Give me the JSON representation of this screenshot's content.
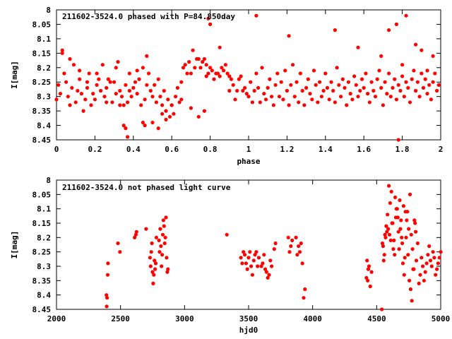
{
  "colors": {
    "points": "#ff0000",
    "axes": "#000000",
    "background": "#ffffff"
  },
  "chart_data": [
    {
      "type": "scatter",
      "title": "211602-3524.0 phased with P=84.850day",
      "xlabel": "phase",
      "ylabel": "I[mag]",
      "xlim": [
        0,
        2
      ],
      "ylim": [
        8.45,
        8.0
      ],
      "y_inverted": true,
      "grid": false,
      "xticks": [
        "0",
        "0.2",
        "0.4",
        "0.6",
        "0.8",
        "1",
        "1.2",
        "1.4",
        "1.6",
        "1.8",
        "2"
      ],
      "yticks": [
        "8",
        "8.05",
        "8.1",
        "8.15",
        "8.2",
        "8.25",
        "8.3",
        "8.35",
        "8.4",
        "8.45"
      ],
      "series": [
        {
          "x": [
            0.0,
            0.01,
            0.02,
            0.03,
            0.04,
            0.05,
            0.06,
            0.07,
            0.08,
            0.09,
            0.1,
            0.11,
            0.12,
            0.13,
            0.14,
            0.15,
            0.16,
            0.17,
            0.18,
            0.19,
            0.2,
            0.21,
            0.22,
            0.23,
            0.24,
            0.25,
            0.26,
            0.27,
            0.28,
            0.29,
            0.3,
            0.31,
            0.32,
            0.33,
            0.34,
            0.35,
            0.36,
            0.37,
            0.38,
            0.39,
            0.4,
            0.41,
            0.42,
            0.43,
            0.44,
            0.45,
            0.46,
            0.47,
            0.48,
            0.49,
            0.5,
            0.51,
            0.52,
            0.53,
            0.54,
            0.55,
            0.56,
            0.57,
            0.58,
            0.59,
            0.6,
            0.61,
            0.62,
            0.63,
            0.64,
            0.65,
            0.66,
            0.67,
            0.68,
            0.69,
            0.7,
            0.71,
            0.72,
            0.73,
            0.74,
            0.75,
            0.76,
            0.77,
            0.78,
            0.79,
            0.8,
            0.81,
            0.82,
            0.83,
            0.84,
            0.85,
            0.86,
            0.87,
            0.88,
            0.89,
            0.9,
            0.91,
            0.92,
            0.93,
            0.94,
            0.95,
            0.96,
            0.97,
            0.98,
            0.99,
            0.03,
            0.07,
            0.12,
            0.16,
            0.21,
            0.26,
            0.31,
            0.35,
            0.36,
            0.37,
            0.45,
            0.46,
            0.5,
            0.53,
            0.57,
            0.74,
            0.77,
            0.78,
            0.79,
            0.8,
            0.33,
            0.38,
            0.42,
            0.47,
            0.55,
            0.6,
            0.65,
            0.7,
            0.85,
            0.9,
            1.0,
            1.01,
            1.02,
            1.03,
            1.04,
            1.05,
            1.06,
            1.07,
            1.08,
            1.09,
            1.1,
            1.11,
            1.12,
            1.13,
            1.14,
            1.15,
            1.16,
            1.17,
            1.18,
            1.19,
            1.2,
            1.21,
            1.22,
            1.23,
            1.24,
            1.25,
            1.26,
            1.27,
            1.28,
            1.29,
            1.3,
            1.31,
            1.32,
            1.33,
            1.34,
            1.35,
            1.36,
            1.37,
            1.38,
            1.39,
            1.4,
            1.41,
            1.42,
            1.43,
            1.44,
            1.45,
            1.46,
            1.47,
            1.48,
            1.49,
            1.5,
            1.51,
            1.52,
            1.53,
            1.54,
            1.55,
            1.56,
            1.57,
            1.58,
            1.59,
            1.6,
            1.61,
            1.62,
            1.63,
            1.64,
            1.65,
            1.66,
            1.67,
            1.68,
            1.69,
            1.7,
            1.71,
            1.72,
            1.73,
            1.74,
            1.75,
            1.76,
            1.77,
            1.78,
            1.79,
            1.8,
            1.81,
            1.82,
            1.83,
            1.84,
            1.85,
            1.86,
            1.87,
            1.88,
            1.89,
            1.9,
            1.91,
            1.92,
            1.93,
            1.94,
            1.95,
            1.96,
            1.97,
            1.98,
            1.99,
            1.04,
            1.21,
            1.45,
            1.57,
            1.69,
            1.73,
            1.77,
            1.78,
            1.8,
            1.82,
            1.87,
            1.9,
            1.93,
            1.96,
            1.99
          ],
          "y": [
            8.31,
            8.26,
            8.29,
            8.15,
            8.22,
            8.25,
            8.3,
            8.33,
            8.27,
            8.19,
            8.32,
            8.28,
            8.24,
            8.29,
            8.35,
            8.31,
            8.27,
            8.22,
            8.33,
            8.29,
            8.31,
            8.26,
            8.24,
            8.28,
            8.19,
            8.3,
            8.27,
            8.24,
            8.25,
            8.32,
            8.25,
            8.2,
            8.18,
            8.28,
            8.3,
            8.33,
            8.26,
            8.32,
            8.22,
            8.3,
            8.27,
            8.25,
            8.29,
            8.24,
            8.33,
            8.2,
            8.31,
            8.26,
            8.22,
            8.28,
            8.3,
            8.26,
            8.32,
            8.24,
            8.3,
            8.33,
            8.28,
            8.35,
            8.31,
            8.37,
            8.33,
            8.36,
            8.3,
            8.27,
            8.32,
            8.25,
            8.2,
            8.19,
            8.22,
            8.18,
            8.22,
            8.14,
            8.2,
            8.17,
            8.17,
            8.2,
            8.18,
            8.17,
            8.19,
            8.22,
            8.2,
            8.21,
            8.24,
            8.22,
            8.22,
            8.23,
            8.2,
            8.21,
            8.19,
            8.22,
            8.28,
            8.24,
            8.26,
            8.31,
            8.28,
            8.24,
            8.23,
            8.28,
            8.27,
            8.29,
            8.14,
            8.17,
            8.21,
            8.25,
            8.22,
            8.32,
            8.29,
            8.4,
            8.41,
            8.44,
            8.39,
            8.4,
            8.39,
            8.41,
            8.38,
            8.37,
            8.35,
            8.23,
            8.03,
            8.05,
            8.33,
            8.28,
            8.21,
            8.16,
            8.36,
            8.33,
            8.31,
            8.34,
            8.13,
            8.23,
            8.3,
            8.25,
            8.32,
            8.28,
            8.22,
            8.27,
            8.32,
            8.2,
            8.29,
            8.31,
            8.27,
            8.24,
            8.3,
            8.33,
            8.26,
            8.22,
            8.3,
            8.25,
            8.31,
            8.21,
            8.28,
            8.33,
            8.26,
            8.19,
            8.3,
            8.25,
            8.32,
            8.22,
            8.28,
            8.33,
            8.27,
            8.24,
            8.29,
            8.31,
            8.21,
            8.26,
            8.32,
            8.25,
            8.3,
            8.28,
            8.22,
            8.27,
            8.31,
            8.25,
            8.28,
            8.32,
            8.2,
            8.26,
            8.3,
            8.24,
            8.27,
            8.33,
            8.25,
            8.29,
            8.31,
            8.23,
            8.26,
            8.3,
            8.28,
            8.24,
            8.27,
            8.22,
            8.29,
            8.32,
            8.25,
            8.28,
            8.3,
            8.24,
            8.21,
            8.27,
            8.33,
            8.25,
            8.29,
            8.22,
            8.3,
            8.27,
            8.24,
            8.31,
            8.26,
            8.28,
            8.23,
            8.3,
            8.25,
            8.27,
            8.32,
            8.24,
            8.21,
            8.28,
            8.25,
            8.3,
            8.22,
            8.27,
            8.24,
            8.29,
            8.26,
            8.31,
            8.25,
            8.22,
            8.28,
            8.26,
            8.02,
            8.09,
            8.07,
            8.13,
            8.16,
            8.07,
            8.05,
            8.45,
            8.19,
            8.02,
            8.12,
            8.14,
            8.21,
            8.16,
            8.26
          ]
        }
      ]
    },
    {
      "type": "scatter",
      "title": "211602-3524.0 not phased light curve",
      "xlabel": "hjd0",
      "ylabel": "I[mag]",
      "xlim": [
        2000,
        5000
      ],
      "ylim": [
        8.45,
        8.0
      ],
      "y_inverted": true,
      "grid": false,
      "xticks": [
        "2000",
        "2500",
        "3000",
        "3500",
        "4000",
        "4500",
        "5000"
      ],
      "yticks": [
        "8",
        "8.05",
        "8.1",
        "8.15",
        "8.2",
        "8.25",
        "8.3",
        "8.35",
        "8.4",
        "8.45"
      ],
      "series": [
        {
          "x": [
            2390,
            2392,
            2395,
            2400,
            2402,
            2480,
            2495,
            2610,
            2620,
            2625,
            2700,
            2730,
            2735,
            2740,
            2745,
            2750,
            2755,
            2760,
            2765,
            2770,
            2775,
            2780,
            2800,
            2805,
            2810,
            2815,
            2820,
            2825,
            2830,
            2835,
            2840,
            2845,
            2850,
            2855,
            2860,
            2865,
            2870,
            3330,
            3440,
            3450,
            3460,
            3470,
            3480,
            3490,
            3500,
            3510,
            3520,
            3530,
            3540,
            3550,
            3560,
            3570,
            3580,
            3600,
            3610,
            3620,
            3630,
            3640,
            3650,
            3660,
            3670,
            3680,
            3700,
            3710,
            3810,
            3820,
            3830,
            3840,
            3870,
            3880,
            3890,
            3900,
            3910,
            3920,
            3930,
            3940,
            4420,
            4425,
            4430,
            4435,
            4440,
            4450,
            4460,
            4540,
            4550,
            4560,
            4570,
            4580,
            4590,
            4600,
            4610,
            4620,
            4630,
            4640,
            4650,
            4660,
            4670,
            4680,
            4690,
            4700,
            4710,
            4720,
            4730,
            4740,
            4750,
            4760,
            4770,
            4780,
            4790,
            4800,
            4810,
            4820,
            4830,
            4840,
            4850,
            4860,
            4870,
            4880,
            4890,
            4900,
            4910,
            4920,
            4930,
            4940,
            4950,
            4960,
            4970,
            4980,
            4990,
            5000,
            4545,
            4555,
            4565,
            4575,
            4585,
            4595,
            4605,
            4615,
            4625,
            4635,
            4645,
            4655,
            4665,
            4675,
            4685,
            4695,
            4705,
            4715,
            4725,
            4735,
            4745,
            4755,
            4765,
            4775,
            4785,
            4795,
            4805
          ],
          "y": [
            8.4,
            8.44,
            8.41,
            8.33,
            8.29,
            8.22,
            8.25,
            8.2,
            8.19,
            8.18,
            8.17,
            8.27,
            8.3,
            8.25,
            8.22,
            8.32,
            8.36,
            8.33,
            8.28,
            8.31,
            8.29,
            8.2,
            8.21,
            8.25,
            8.17,
            8.23,
            8.3,
            8.26,
            8.19,
            8.14,
            8.16,
            8.22,
            8.2,
            8.13,
            8.27,
            8.32,
            8.31,
            8.19,
            8.27,
            8.29,
            8.25,
            8.26,
            8.29,
            8.31,
            8.27,
            8.25,
            8.3,
            8.33,
            8.28,
            8.26,
            8.25,
            8.3,
            8.27,
            8.3,
            8.29,
            8.26,
            8.31,
            8.32,
            8.34,
            8.33,
            8.28,
            8.3,
            8.24,
            8.22,
            8.2,
            8.25,
            8.23,
            8.21,
            8.2,
            8.26,
            8.23,
            8.25,
            8.22,
            8.29,
            8.41,
            8.38,
            8.34,
            8.28,
            8.35,
            8.31,
            8.3,
            8.37,
            8.32,
            8.45,
            8.23,
            8.26,
            8.2,
            8.18,
            8.17,
            8.19,
            8.21,
            8.15,
            8.24,
            8.26,
            8.13,
            8.1,
            8.18,
            8.07,
            8.14,
            8.22,
            8.09,
            8.27,
            8.2,
            8.11,
            8.17,
            8.05,
            8.19,
            8.24,
            8.31,
            8.15,
            8.28,
            8.22,
            8.36,
            8.33,
            8.27,
            8.3,
            8.35,
            8.32,
            8.29,
            8.26,
            8.23,
            8.28,
            8.3,
            8.25,
            8.27,
            8.33,
            8.31,
            8.29,
            8.27,
            8.25,
            8.22,
            8.28,
            8.19,
            8.16,
            8.12,
            8.02,
            8.08,
            8.04,
            8.15,
            8.21,
            8.06,
            8.1,
            8.13,
            8.24,
            8.17,
            8.2,
            8.29,
            8.33,
            8.11,
            8.14,
            8.26,
            8.35,
            8.38,
            8.42,
            8.31,
            8.14,
            8.18
          ]
        }
      ]
    }
  ]
}
